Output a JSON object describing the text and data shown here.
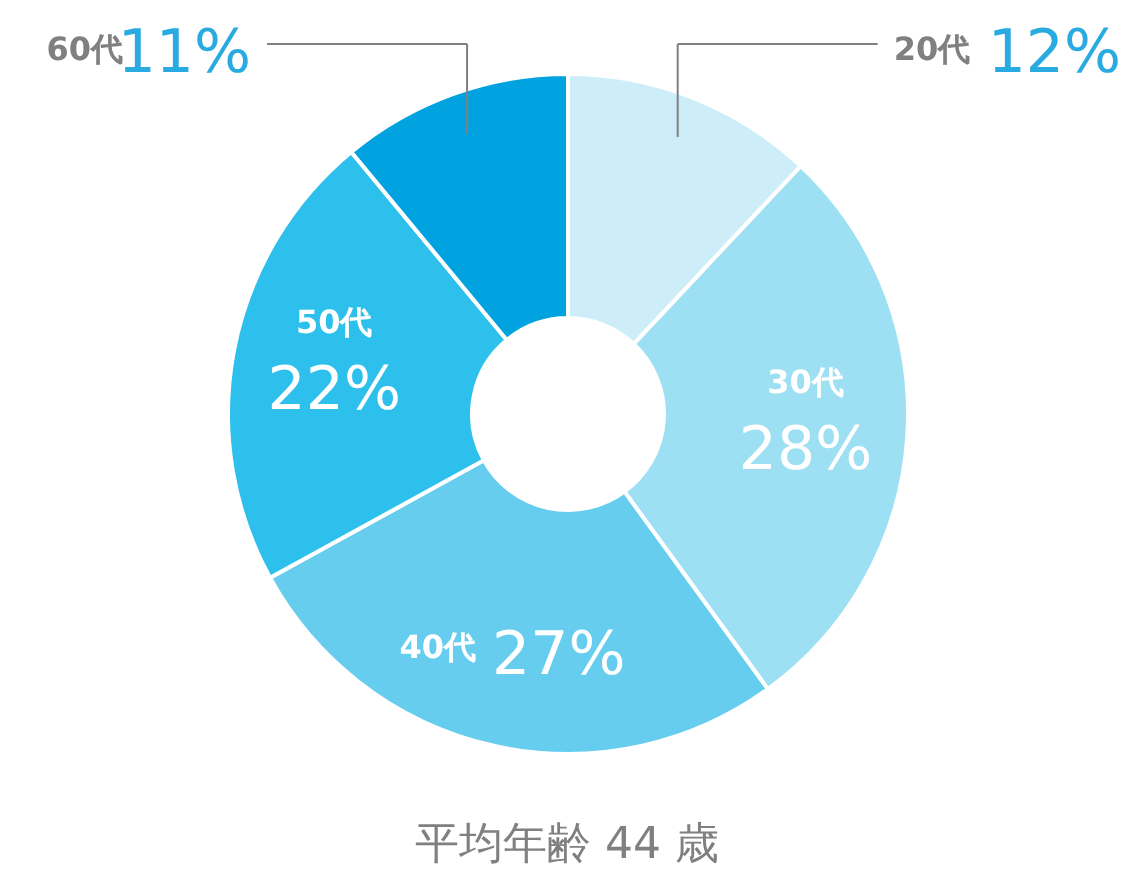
{
  "chart_data": {
    "type": "donut",
    "categories": [
      "20代",
      "30代",
      "40代",
      "50代",
      "60代"
    ],
    "values": [
      12,
      28,
      27,
      22,
      11
    ],
    "colors": [
      "#cdeef8",
      "#9ddff3",
      "#66cdef",
      "#2ec0ec",
      "#00a3e0"
    ],
    "value_labels": [
      "12%",
      "28%",
      "27%",
      "22%",
      "11%"
    ],
    "annotations": [
      "平均年齢 44 歳"
    ]
  }
}
